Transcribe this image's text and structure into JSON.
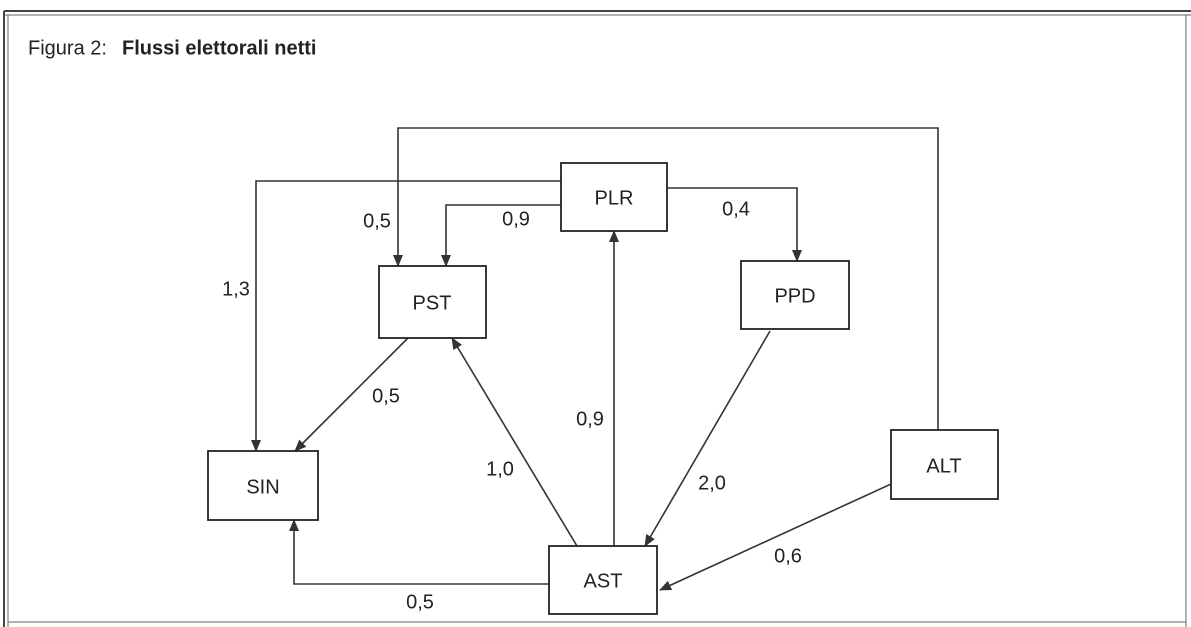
{
  "title": {
    "prefix": "Figura 2:",
    "main": "Flussi elettorali netti"
  },
  "nodes": [
    {
      "label": "PLR"
    },
    {
      "label": "PST"
    },
    {
      "label": "PPD"
    },
    {
      "label": "SIN"
    },
    {
      "label": "AST"
    },
    {
      "label": "ALT"
    }
  ],
  "edges": [
    {
      "from": "PLR",
      "to": "SIN",
      "label": "1,3"
    },
    {
      "from": "PLR",
      "to": "PST",
      "label": "0,9"
    },
    {
      "from": "PLR",
      "to": "PPD",
      "label": "0,4"
    },
    {
      "from": "ALT",
      "to": "PST",
      "label": "0,5"
    },
    {
      "from": "PST",
      "to": "SIN",
      "label": "0,5"
    },
    {
      "from": "AST",
      "to": "PST",
      "label": "1,0"
    },
    {
      "from": "AST",
      "to": "PLR",
      "label": "0,9"
    },
    {
      "from": "PPD",
      "to": "AST",
      "label": "2,0"
    },
    {
      "from": "ALT",
      "to": "AST",
      "label": "0,6"
    },
    {
      "from": "AST",
      "to": "SIN",
      "label": "0,5"
    }
  ]
}
